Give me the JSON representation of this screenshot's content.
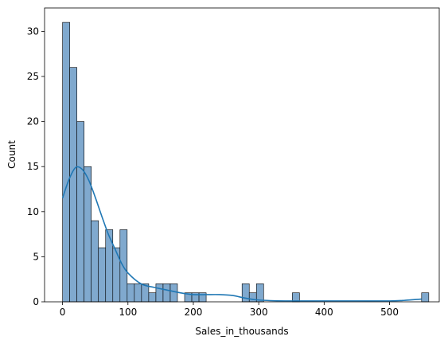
{
  "chart_data": {
    "type": "bar",
    "xlabel": "Sales_in_thousands",
    "ylabel": "Count",
    "xlim": [
      -27.5,
      576.0
    ],
    "ylim": [
      0,
      32.6
    ],
    "grid": false,
    "x_ticks": [
      "0",
      "100",
      "200",
      "300",
      "400",
      "500"
    ],
    "x_tick_values": [
      0,
      100,
      200,
      300,
      400,
      500
    ],
    "y_ticks": [
      "0",
      "5",
      "10",
      "15",
      "20",
      "25",
      "30"
    ],
    "y_tick_values": [
      0,
      5,
      10,
      15,
      20,
      25,
      30
    ],
    "bin_start": 0,
    "bin_width": 10.98,
    "bin_counts": [
      31,
      26,
      20,
      15,
      9,
      6,
      8,
      6,
      8,
      2,
      2,
      2,
      1,
      2,
      2,
      2,
      0,
      1,
      1,
      1,
      0,
      0,
      0,
      0,
      0,
      2,
      1,
      2,
      0,
      0,
      0,
      0,
      1,
      0,
      0,
      0,
      0,
      0,
      0,
      0,
      0,
      0,
      0,
      0,
      0,
      0,
      0,
      0,
      0,
      0,
      1
    ],
    "kde": {
      "x": [
        0,
        10,
        20,
        30,
        40,
        50,
        60,
        70,
        80,
        90,
        100,
        120,
        140,
        160,
        180,
        200,
        220,
        240,
        260,
        280,
        300,
        340,
        400,
        450,
        500,
        520,
        549
      ],
      "y": [
        11.5,
        13.6,
        14.9,
        14.7,
        13.5,
        11.6,
        9.5,
        7.5,
        5.9,
        4.3,
        3.2,
        2.0,
        1.6,
        1.3,
        1.0,
        0.8,
        0.8,
        0.8,
        0.7,
        0.4,
        0.2,
        0.1,
        0.1,
        0.1,
        0.1,
        0.15,
        0.3
      ]
    }
  },
  "colors": {
    "bar_fill": "#80a9ce",
    "bar_edge": "#000000",
    "kde_line": "#1f77b4",
    "axes": "#000000"
  }
}
